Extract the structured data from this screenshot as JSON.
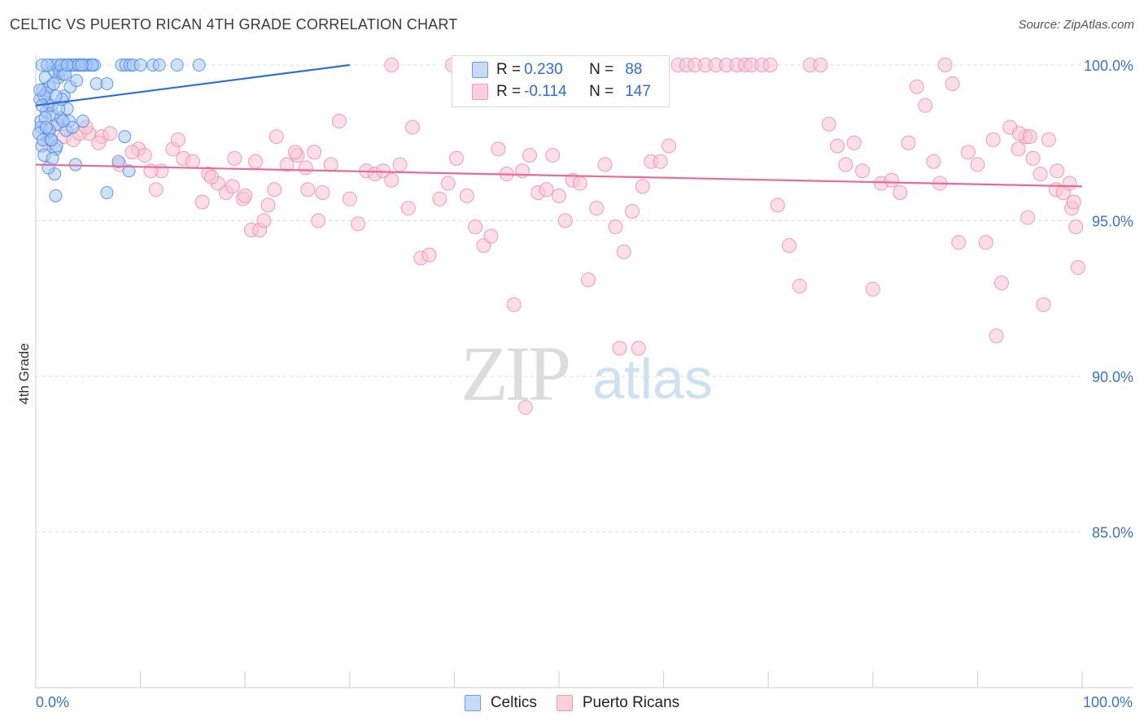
{
  "header": {
    "title": "CELTIC VS PUERTO RICAN 4TH GRADE CORRELATION CHART",
    "source": "Source: ZipAtlas.com"
  },
  "colors": {
    "blue": "#4a86e8",
    "blue_fill": "#a9c8f5",
    "blue_line": "#2c6fd1",
    "pink": "#f08cab",
    "pink_fill": "#f9c3d3",
    "pink_line": "#e96a95",
    "tick_text": "#3b73c4",
    "grid": "#dddddd"
  },
  "legend": {
    "r_label": "R =",
    "n_label": "N =",
    "rows": [
      {
        "r": "0.230",
        "n": "88"
      },
      {
        "r": "-0.114",
        "n": "147"
      }
    ]
  },
  "watermark": {
    "zip": "ZIP",
    "atlas": "atlas"
  },
  "chart_data": {
    "type": "scatter",
    "title": "CELTIC VS PUERTO RICAN 4TH GRADE CORRELATION CHART",
    "xlabel": "",
    "ylabel": "4th Grade",
    "xlim": [
      0,
      100
    ],
    "ylim": [
      80.5,
      100.8
    ],
    "x_tick_labels": [
      {
        "value": 0,
        "label": "0.0%"
      },
      {
        "value": 100,
        "label": "100.0%"
      }
    ],
    "y_ticks": [
      {
        "value": 100,
        "label": "100.0%"
      },
      {
        "value": 95,
        "label": "95.0%"
      },
      {
        "value": 90,
        "label": "90.0%"
      },
      {
        "value": 85,
        "label": "85.0%"
      }
    ],
    "grid": true,
    "legend_position": "top-center",
    "series": [
      {
        "name": "Celtics",
        "color": "#4a86e8",
        "trend": {
          "x": [
            0,
            30
          ],
          "y": [
            98.7,
            100.0
          ]
        },
        "points": [
          [
            0.5,
            98.2
          ],
          [
            0.7,
            99.2
          ],
          [
            1.0,
            98.5
          ],
          [
            1.2,
            97.8
          ],
          [
            0.9,
            99.6
          ],
          [
            1.5,
            100.0
          ],
          [
            1.8,
            99.8
          ],
          [
            2.0,
            100.0
          ],
          [
            2.2,
            99.6
          ],
          [
            2.5,
            100.0
          ],
          [
            2.8,
            100.0
          ],
          [
            3.1,
            100.0
          ],
          [
            3.4,
            100.0
          ],
          [
            3.7,
            100.0
          ],
          [
            4.0,
            100.0
          ],
          [
            4.3,
            100.0
          ],
          [
            4.6,
            100.0
          ],
          [
            5.0,
            100.0
          ],
          [
            5.3,
            100.0
          ],
          [
            5.6,
            100.0
          ],
          [
            1.3,
            99.3
          ],
          [
            1.7,
            99.4
          ],
          [
            2.3,
            99.8
          ],
          [
            2.6,
            99.7
          ],
          [
            1.1,
            98.8
          ],
          [
            1.6,
            98.4
          ],
          [
            2.1,
            98.1
          ],
          [
            2.4,
            98.3
          ],
          [
            0.6,
            97.4
          ],
          [
            0.8,
            97.1
          ],
          [
            1.4,
            97.6
          ],
          [
            1.9,
            97.3
          ],
          [
            0.4,
            98.9
          ],
          [
            0.5,
            98.0
          ],
          [
            1.0,
            99.1
          ],
          [
            1.5,
            98.7
          ],
          [
            2.7,
            99.0
          ],
          [
            3.0,
            98.6
          ],
          [
            3.2,
            98.2
          ],
          [
            0.3,
            97.8
          ],
          [
            8.2,
            100.0
          ],
          [
            8.6,
            100.0
          ],
          [
            9.0,
            100.0
          ],
          [
            9.3,
            100.0
          ],
          [
            10.0,
            100.0
          ],
          [
            11.2,
            100.0
          ],
          [
            11.8,
            100.0
          ],
          [
            13.5,
            100.0
          ],
          [
            15.6,
            100.0
          ],
          [
            4.5,
            98.2
          ],
          [
            5.8,
            99.4
          ],
          [
            6.8,
            99.4
          ],
          [
            2.0,
            97.4
          ],
          [
            1.8,
            96.5
          ],
          [
            1.9,
            95.8
          ],
          [
            3.8,
            96.8
          ],
          [
            6.8,
            95.9
          ],
          [
            8.5,
            97.7
          ],
          [
            8.9,
            96.6
          ],
          [
            7.9,
            96.9
          ],
          [
            1.2,
            96.7
          ],
          [
            2.9,
            97.9
          ],
          [
            3.5,
            98.0
          ],
          [
            0.8,
            99.0
          ],
          [
            0.6,
            100.0
          ],
          [
            1.1,
            100.0
          ],
          [
            2.4,
            100.0
          ],
          [
            3.6,
            100.0
          ],
          [
            4.8,
            100.0
          ],
          [
            5.4,
            100.0
          ],
          [
            0.9,
            98.3
          ],
          [
            1.3,
            97.9
          ],
          [
            2.2,
            98.6
          ],
          [
            2.5,
            98.9
          ],
          [
            0.7,
            97.6
          ],
          [
            1.6,
            97.0
          ],
          [
            3.3,
            99.3
          ],
          [
            3.9,
            99.5
          ],
          [
            4.1,
            100.0
          ],
          [
            4.4,
            100.0
          ],
          [
            0.4,
            99.2
          ],
          [
            1.0,
            98.0
          ],
          [
            1.5,
            97.6
          ],
          [
            2.6,
            98.2
          ],
          [
            0.6,
            98.7
          ],
          [
            1.9,
            99.0
          ],
          [
            2.8,
            99.7
          ],
          [
            3.0,
            100.0
          ]
        ]
      },
      {
        "name": "Puerto Ricans",
        "color": "#f08cab",
        "trend": {
          "x": [
            0,
            100
          ],
          "y": [
            96.8,
            96.1
          ]
        },
        "points": [
          [
            1.2,
            97.5
          ],
          [
            2.0,
            98.1
          ],
          [
            2.7,
            97.7
          ],
          [
            3.6,
            97.6
          ],
          [
            4.2,
            97.8
          ],
          [
            5.1,
            97.8
          ],
          [
            6.3,
            97.7
          ],
          [
            7.1,
            97.8
          ],
          [
            9.8,
            97.3
          ],
          [
            10.4,
            97.1
          ],
          [
            11.5,
            96.0
          ],
          [
            12.0,
            96.6
          ],
          [
            13.1,
            97.3
          ],
          [
            14.1,
            97.0
          ],
          [
            15.0,
            96.9
          ],
          [
            15.9,
            95.6
          ],
          [
            16.5,
            96.5
          ],
          [
            17.4,
            96.2
          ],
          [
            18.2,
            95.9
          ],
          [
            19.0,
            97.0
          ],
          [
            19.8,
            95.7
          ],
          [
            20.6,
            94.7
          ],
          [
            21.4,
            94.7
          ],
          [
            22.2,
            95.5
          ],
          [
            23.0,
            97.7
          ],
          [
            24.0,
            96.8
          ],
          [
            25.0,
            97.1
          ],
          [
            25.8,
            96.7
          ],
          [
            26.6,
            97.2
          ],
          [
            27.4,
            95.9
          ],
          [
            28.2,
            96.8
          ],
          [
            29.0,
            98.2
          ],
          [
            30.0,
            95.7
          ],
          [
            30.8,
            94.9
          ],
          [
            31.6,
            96.6
          ],
          [
            32.4,
            96.5
          ],
          [
            33.2,
            96.6
          ],
          [
            34.0,
            96.3
          ],
          [
            34.8,
            96.8
          ],
          [
            35.6,
            95.4
          ],
          [
            36.0,
            98.0
          ],
          [
            36.8,
            93.8
          ],
          [
            37.6,
            93.9
          ],
          [
            38.6,
            95.7
          ],
          [
            39.4,
            96.2
          ],
          [
            40.2,
            97.0
          ],
          [
            41.2,
            95.8
          ],
          [
            42.0,
            94.8
          ],
          [
            42.8,
            94.2
          ],
          [
            43.5,
            94.5
          ],
          [
            44.2,
            97.3
          ],
          [
            45.0,
            96.5
          ],
          [
            45.7,
            92.3
          ],
          [
            46.5,
            96.6
          ],
          [
            47.2,
            97.1
          ],
          [
            48.0,
            95.9
          ],
          [
            48.8,
            96.0
          ],
          [
            49.4,
            97.1
          ],
          [
            50.0,
            95.8
          ],
          [
            50.6,
            95.0
          ],
          [
            51.3,
            96.3
          ],
          [
            52.0,
            96.2
          ],
          [
            52.8,
            93.1
          ],
          [
            53.6,
            95.4
          ],
          [
            54.4,
            96.8
          ],
          [
            55.4,
            94.8
          ],
          [
            56.2,
            94.0
          ],
          [
            57.0,
            95.3
          ],
          [
            58.0,
            96.1
          ],
          [
            58.8,
            96.9
          ],
          [
            59.7,
            96.9
          ],
          [
            60.5,
            97.4
          ],
          [
            61.4,
            100.0
          ],
          [
            62.2,
            100.0
          ],
          [
            63.0,
            100.0
          ],
          [
            64.0,
            100.0
          ],
          [
            65.0,
            100.0
          ],
          [
            66.0,
            100.0
          ],
          [
            67.0,
            100.0
          ],
          [
            67.8,
            100.0
          ],
          [
            68.4,
            100.0
          ],
          [
            69.4,
            100.0
          ],
          [
            70.2,
            100.0
          ],
          [
            70.9,
            95.5
          ],
          [
            72.0,
            94.2
          ],
          [
            73.0,
            92.9
          ],
          [
            74.0,
            100.0
          ],
          [
            75.0,
            100.0
          ],
          [
            75.8,
            98.1
          ],
          [
            76.6,
            97.4
          ],
          [
            77.4,
            96.8
          ],
          [
            78.2,
            97.5
          ],
          [
            79.0,
            96.6
          ],
          [
            80.0,
            92.8
          ],
          [
            80.8,
            96.2
          ],
          [
            81.8,
            96.3
          ],
          [
            82.6,
            95.9
          ],
          [
            83.4,
            97.5
          ],
          [
            84.2,
            99.3
          ],
          [
            85.0,
            98.7
          ],
          [
            85.8,
            96.9
          ],
          [
            86.4,
            96.2
          ],
          [
            86.9,
            100.0
          ],
          [
            87.6,
            99.4
          ],
          [
            88.2,
            94.3
          ],
          [
            89.1,
            97.2
          ],
          [
            90.0,
            96.8
          ],
          [
            90.8,
            94.3
          ],
          [
            91.5,
            97.6
          ],
          [
            92.3,
            93.0
          ],
          [
            93.1,
            98.0
          ],
          [
            93.9,
            97.3
          ],
          [
            94.6,
            97.7
          ],
          [
            95.3,
            97.0
          ],
          [
            96.0,
            96.5
          ],
          [
            96.8,
            97.6
          ],
          [
            97.5,
            96.0
          ],
          [
            98.2,
            95.9
          ],
          [
            99.0,
            95.4
          ],
          [
            99.6,
            93.5
          ],
          [
            96.3,
            92.3
          ],
          [
            91.8,
            91.3
          ],
          [
            55.8,
            90.9
          ],
          [
            57.6,
            90.9
          ],
          [
            46.8,
            89.0
          ],
          [
            94.8,
            95.1
          ],
          [
            97.6,
            96.6
          ],
          [
            98.8,
            96.2
          ],
          [
            99.2,
            95.6
          ],
          [
            99.4,
            94.8
          ],
          [
            94.0,
            97.8
          ],
          [
            95.0,
            97.7
          ],
          [
            48.5,
            99.4
          ],
          [
            34.0,
            100.0
          ],
          [
            39.8,
            100.0
          ],
          [
            42.2,
            100.0
          ],
          [
            4.8,
            98.0
          ],
          [
            6.0,
            97.5
          ],
          [
            8.0,
            96.8
          ],
          [
            9.2,
            97.2
          ],
          [
            11.0,
            96.6
          ],
          [
            13.6,
            97.6
          ],
          [
            16.8,
            96.4
          ],
          [
            18.8,
            96.1
          ],
          [
            20.0,
            95.8
          ],
          [
            21.0,
            96.9
          ],
          [
            21.8,
            95.0
          ],
          [
            22.8,
            96.0
          ],
          [
            24.8,
            97.2
          ],
          [
            26.0,
            96.0
          ],
          [
            27.0,
            95.0
          ]
        ]
      }
    ]
  },
  "bottom_legend": {
    "items": [
      {
        "label": "Celtics"
      },
      {
        "label": "Puerto Ricans"
      }
    ]
  }
}
